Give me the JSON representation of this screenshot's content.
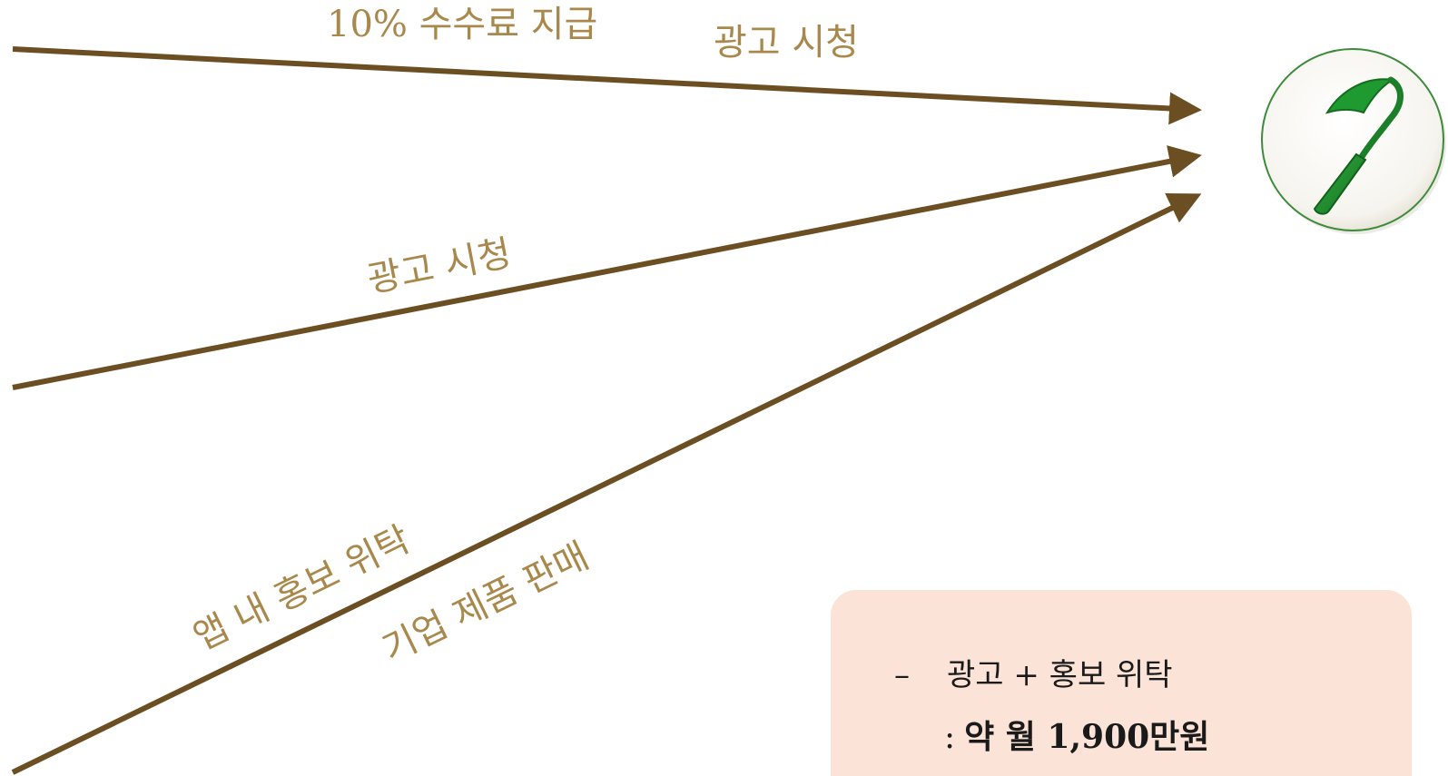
{
  "labels": {
    "commission": "10% 수수료 지급",
    "ad_view_top": "광고 시청",
    "ad_view_middle": "광고 시청",
    "in_app_promo": "앱 내 홍보 위탁",
    "product_sales": "기업 제품 판매"
  },
  "info_box": {
    "bullet": "–",
    "line1": "광고 + 홍보 위탁",
    "colon": ":",
    "line2": "약 월 1,900만원"
  },
  "colors": {
    "arrow": "#6b4f22",
    "label": "#a9884c",
    "logo_green": "#1f8a2e",
    "info_box_bg": "#fbe3d7"
  },
  "logo": {
    "icon": "hoe-icon"
  }
}
